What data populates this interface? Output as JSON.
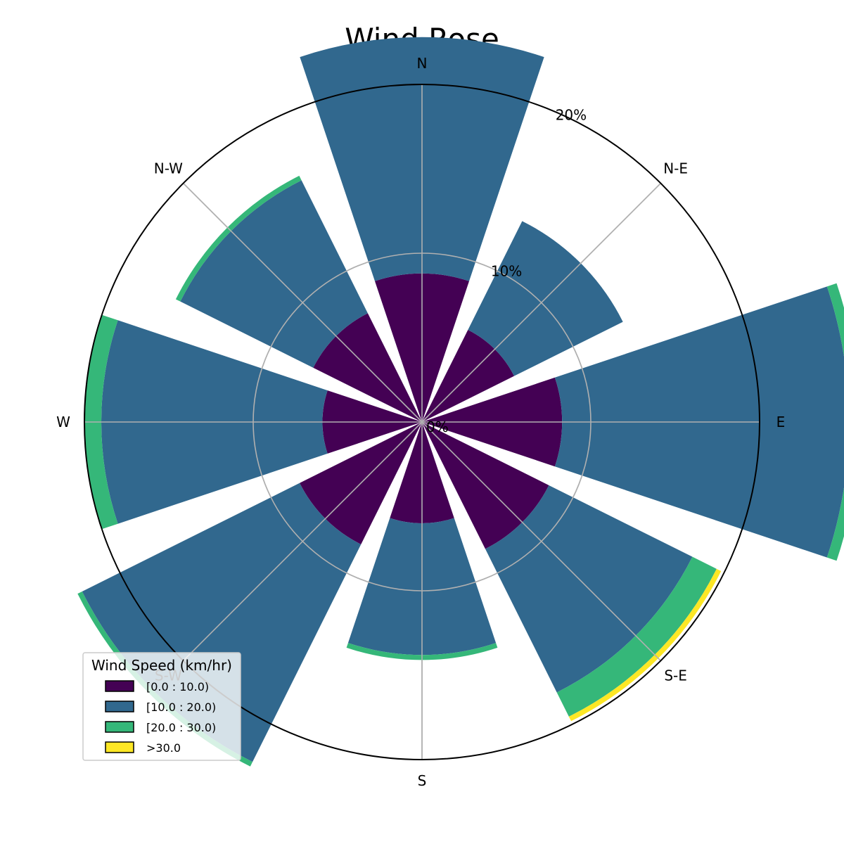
{
  "chart_data": {
    "type": "wind-rose",
    "title": "Wind Rose",
    "directions": [
      "N",
      "N-E",
      "E",
      "S-E",
      "S",
      "S-W",
      "W",
      "N-W"
    ],
    "radial_ticks": [
      {
        "value": 0,
        "label": "0%"
      },
      {
        "value": 10,
        "label": "10%"
      },
      {
        "value": 20,
        "label": "20%"
      }
    ],
    "rmax": 20,
    "grid": true,
    "series": [
      {
        "name": "[0.0 : 10.0)",
        "color": "#440154",
        "values": [
          8.8,
          6.1,
          8.3,
          8.4,
          6.0,
          8.1,
          5.9,
          7.2
        ]
      },
      {
        "name": "[10.0 : 20.0)",
        "color": "#31688e",
        "values": [
          14.0,
          7.2,
          17.0,
          9.5,
          7.8,
          14.4,
          13.1,
          8.8
        ]
      },
      {
        "name": "[20.0 : 30.0)",
        "color": "#35b779",
        "values": [
          0,
          0,
          0.6,
          1.6,
          0.3,
          0.3,
          1.0,
          0.3
        ]
      },
      {
        "name": ">30.0",
        "color": "#fde725",
        "values": [
          0,
          0,
          0,
          0.3,
          0,
          0,
          0,
          0
        ]
      }
    ],
    "legend": {
      "title": "Wind Speed (km/hr)",
      "placement": "lower-left"
    }
  }
}
